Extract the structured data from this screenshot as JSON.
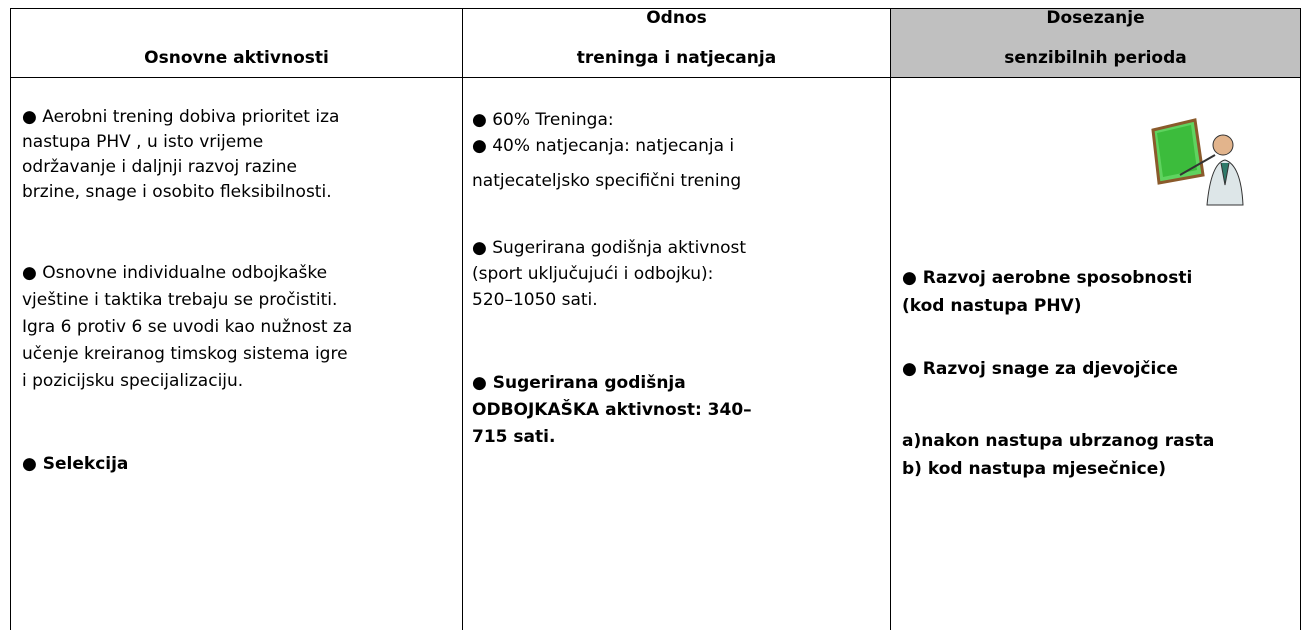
{
  "table": {
    "headers": [
      [
        "Osnovne aktivnosti"
      ],
      [
        "Odnos",
        "treninga i natjecanja"
      ],
      [
        "Dosezanje",
        "senzibilnih perioda"
      ]
    ],
    "columns": [
      [
        [
          "● Aerobni trening dobiva prioritet iza",
          "nastupa  PHV , u isto vrijeme",
          "održavanje i daljnji razvoj razine",
          "brzine, snage i osobito fleksibilnosti."
        ],
        [
          "● Osnovne individualne odbojkaške",
          "vještine i taktika trebaju se pročistiti.",
          "Igra 6 protiv 6 se uvodi kao nužnost za",
          "učenje kreiranog timskog sistema igre",
          "i pozicijsku  specijalizaciju."
        ],
        [
          "● Selekcija"
        ]
      ],
      [
        [
          "● 60% Treninga:",
          "● 40% natjecanja: natjecanja i",
          "natjecateljsko specifični trening"
        ],
        [
          "● Sugerirana godišnja aktivnost",
          "(sport uključujući i odbojku):",
          "520–1050 sati."
        ],
        [
          "● Sugerirana godišnja",
          "ODBOJKAŠKA aktivnost: 340–",
          "715 sati."
        ]
      ],
      [
        [
          "● Razvoj aerobne sposobnosti",
          "(kod nastupa PHV)"
        ],
        [
          "● Razvoj snage za djevojčice"
        ],
        [
          "a)nakon nastupa ubrzanog rasta",
          "b) kod nastupa mjesečnice)"
        ]
      ]
    ]
  }
}
